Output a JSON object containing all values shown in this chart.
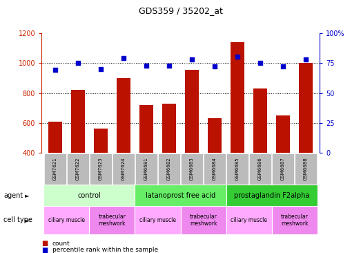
{
  "title": "GDS359 / 35202_at",
  "samples": [
    "GSM7621",
    "GSM7622",
    "GSM7623",
    "GSM7624",
    "GSM6681",
    "GSM6682",
    "GSM6683",
    "GSM6684",
    "GSM6685",
    "GSM6686",
    "GSM6687",
    "GSM6688"
  ],
  "counts": [
    610,
    820,
    565,
    900,
    720,
    730,
    955,
    630,
    1140,
    830,
    650,
    1000
  ],
  "percentile_ranks": [
    69,
    75,
    70,
    79,
    73,
    73,
    78,
    72,
    80,
    75,
    72,
    78
  ],
  "ylim_left": [
    400,
    1200
  ],
  "ylim_right": [
    0,
    100
  ],
  "yticks_left": [
    400,
    600,
    800,
    1000,
    1200
  ],
  "yticks_right": [
    0,
    25,
    50,
    75,
    100
  ],
  "yticklabels_right": [
    "0",
    "25",
    "50",
    "75",
    "100%"
  ],
  "bar_color": "#bb1100",
  "dot_color": "#0000cc",
  "agent_groups": [
    {
      "label": "control",
      "start": 0,
      "end": 4,
      "color": "#ccffcc"
    },
    {
      "label": "latanoprost free acid",
      "start": 4,
      "end": 8,
      "color": "#66ee66"
    },
    {
      "label": "prostaglandin F2alpha",
      "start": 8,
      "end": 12,
      "color": "#33cc33"
    }
  ],
  "cell_type_groups": [
    {
      "label": "ciliary muscle",
      "start": 0,
      "end": 2,
      "color": "#ffaaff"
    },
    {
      "label": "trabecular\nmeshwork",
      "start": 2,
      "end": 4,
      "color": "#ee88ee"
    },
    {
      "label": "ciliary muscle",
      "start": 4,
      "end": 6,
      "color": "#ffaaff"
    },
    {
      "label": "trabecular\nmeshwork",
      "start": 6,
      "end": 8,
      "color": "#ee88ee"
    },
    {
      "label": "ciliary muscle",
      "start": 8,
      "end": 10,
      "color": "#ffaaff"
    },
    {
      "label": "trabecular\nmeshwork",
      "start": 10,
      "end": 12,
      "color": "#ee88ee"
    }
  ],
  "label_agent": "agent",
  "label_cell_type": "cell type",
  "legend_count": "count",
  "legend_percentile": "percentile rank within the sample",
  "tick_color_left": "#cc2200",
  "tick_color_right": "#0000cc",
  "grid_color": "black",
  "bg_color": "#ffffff",
  "sample_label_bg": "#bbbbbb"
}
